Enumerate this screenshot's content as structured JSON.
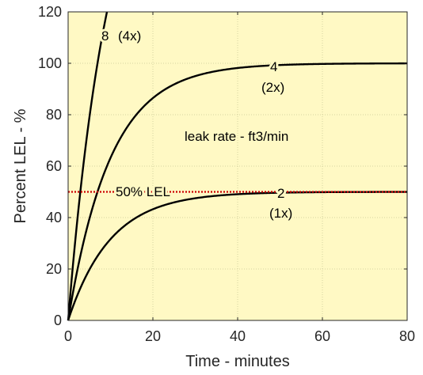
{
  "chart_data": {
    "type": "line",
    "xlabel": "Time - minutes",
    "ylabel": "Percent LEL - %",
    "xlim": [
      0,
      80
    ],
    "ylim": [
      0,
      120
    ],
    "x_ticks": [
      "0",
      "20",
      "40",
      "60",
      "80"
    ],
    "y_ticks": [
      "0",
      "20",
      "40",
      "60",
      "80",
      "100",
      "120"
    ],
    "grid": true,
    "background": "#fff9c4",
    "series": [
      {
        "name": "2",
        "multiplier": "(1x)",
        "asymptote": 50,
        "tau_minutes": 10,
        "color": "#000000"
      },
      {
        "name": "4",
        "multiplier": "(2x)",
        "asymptote": 100,
        "tau_minutes": 10,
        "color": "#000000"
      },
      {
        "name": "8",
        "multiplier": "(4x)",
        "asymptote": 200,
        "tau_minutes": 10,
        "color": "#000000"
      }
    ],
    "reference_line": {
      "label": "50% LEL",
      "y": 50,
      "color": "#cc0000"
    },
    "annotation": "leak rate - ft3/min"
  }
}
